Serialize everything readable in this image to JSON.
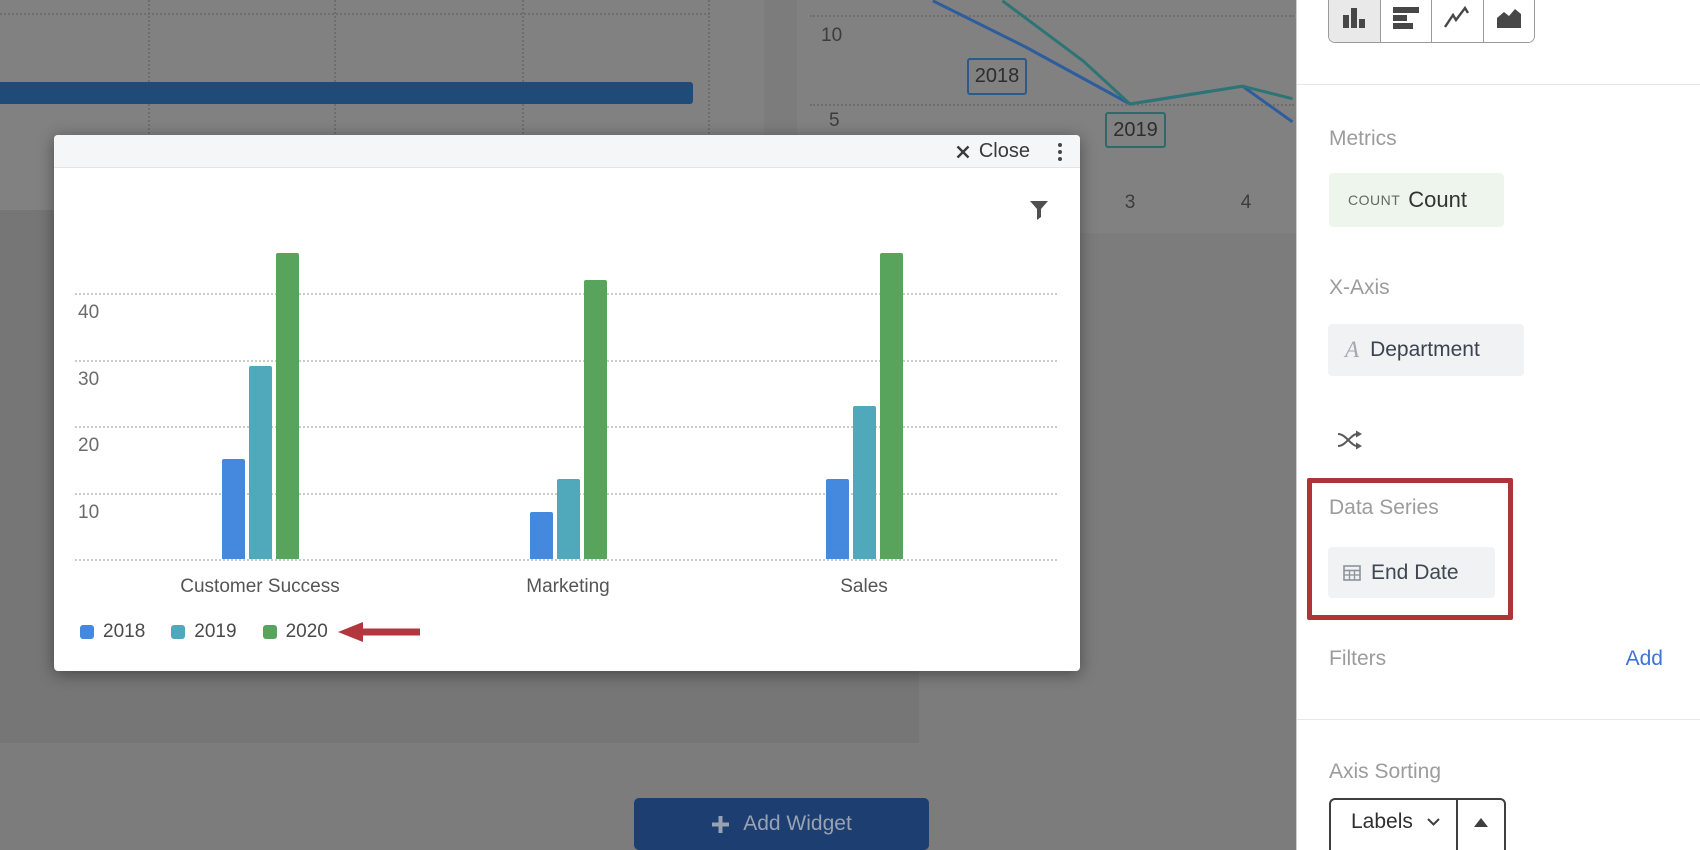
{
  "chart_data": [
    {
      "id": "modal-column-chart",
      "type": "bar",
      "categories": [
        "Customer Success",
        "Marketing",
        "Sales"
      ],
      "series": [
        {
          "name": "2018",
          "color": "#4589de",
          "values": [
            15,
            7,
            12
          ]
        },
        {
          "name": "2019",
          "color": "#4fa9ba",
          "values": [
            29,
            12,
            23
          ]
        },
        {
          "name": "2020",
          "color": "#59a45c",
          "values": [
            46,
            42,
            46
          ]
        }
      ],
      "yticks": [
        10,
        20,
        30,
        40
      ],
      "ylim": [
        0,
        48
      ],
      "grid": "horizontal-dotted",
      "legend_position": "bottom-left",
      "annotation": "red-arrow-pointing-at-2020-legend-item"
    },
    {
      "id": "background-line-chart",
      "type": "line",
      "xticks": [
        "3",
        "4"
      ],
      "yticks": [
        "10",
        "5"
      ],
      "series": [
        {
          "name": "series-blue",
          "color": "#2e5d9e",
          "points": [
            [
              1.3,
              10.8
            ],
            [
              2.1,
              8.2
            ],
            [
              3.0,
              5.0
            ],
            [
              3.97,
              6.0
            ],
            [
              4.4,
              4.0
            ]
          ]
        },
        {
          "name": "series-teal",
          "color": "#2d7575",
          "points": [
            [
              1.9,
              10.8
            ],
            [
              2.6,
              7.4
            ],
            [
              3.0,
              5.0
            ],
            [
              3.97,
              6.0
            ],
            [
              4.4,
              5.3
            ]
          ]
        }
      ],
      "annotations": [
        {
          "label": "2018",
          "color": "#2b5a8c"
        },
        {
          "label": "2019",
          "color": "#2d6b6b"
        }
      ]
    }
  ],
  "modal": {
    "close_label": "Close"
  },
  "background": {
    "add_widget_label": "Add Widget"
  },
  "sidebar": {
    "chart_types": [
      {
        "name": "column-chart",
        "selected": true
      },
      {
        "name": "horizontal-bar-chart",
        "selected": false
      },
      {
        "name": "line-chart",
        "selected": false
      },
      {
        "name": "area-chart",
        "selected": false
      }
    ],
    "metrics": {
      "heading": "Metrics",
      "aggregation": "COUNT",
      "field": "Count"
    },
    "x_axis": {
      "heading": "X-Axis",
      "field": "Department"
    },
    "data_series": {
      "heading": "Data Series",
      "field": "End Date",
      "highlight_color": "#ae3537"
    },
    "filters": {
      "heading": "Filters",
      "action_label": "Add"
    },
    "axis_sorting": {
      "heading": "Axis Sorting",
      "selected_option": "Labels"
    }
  }
}
